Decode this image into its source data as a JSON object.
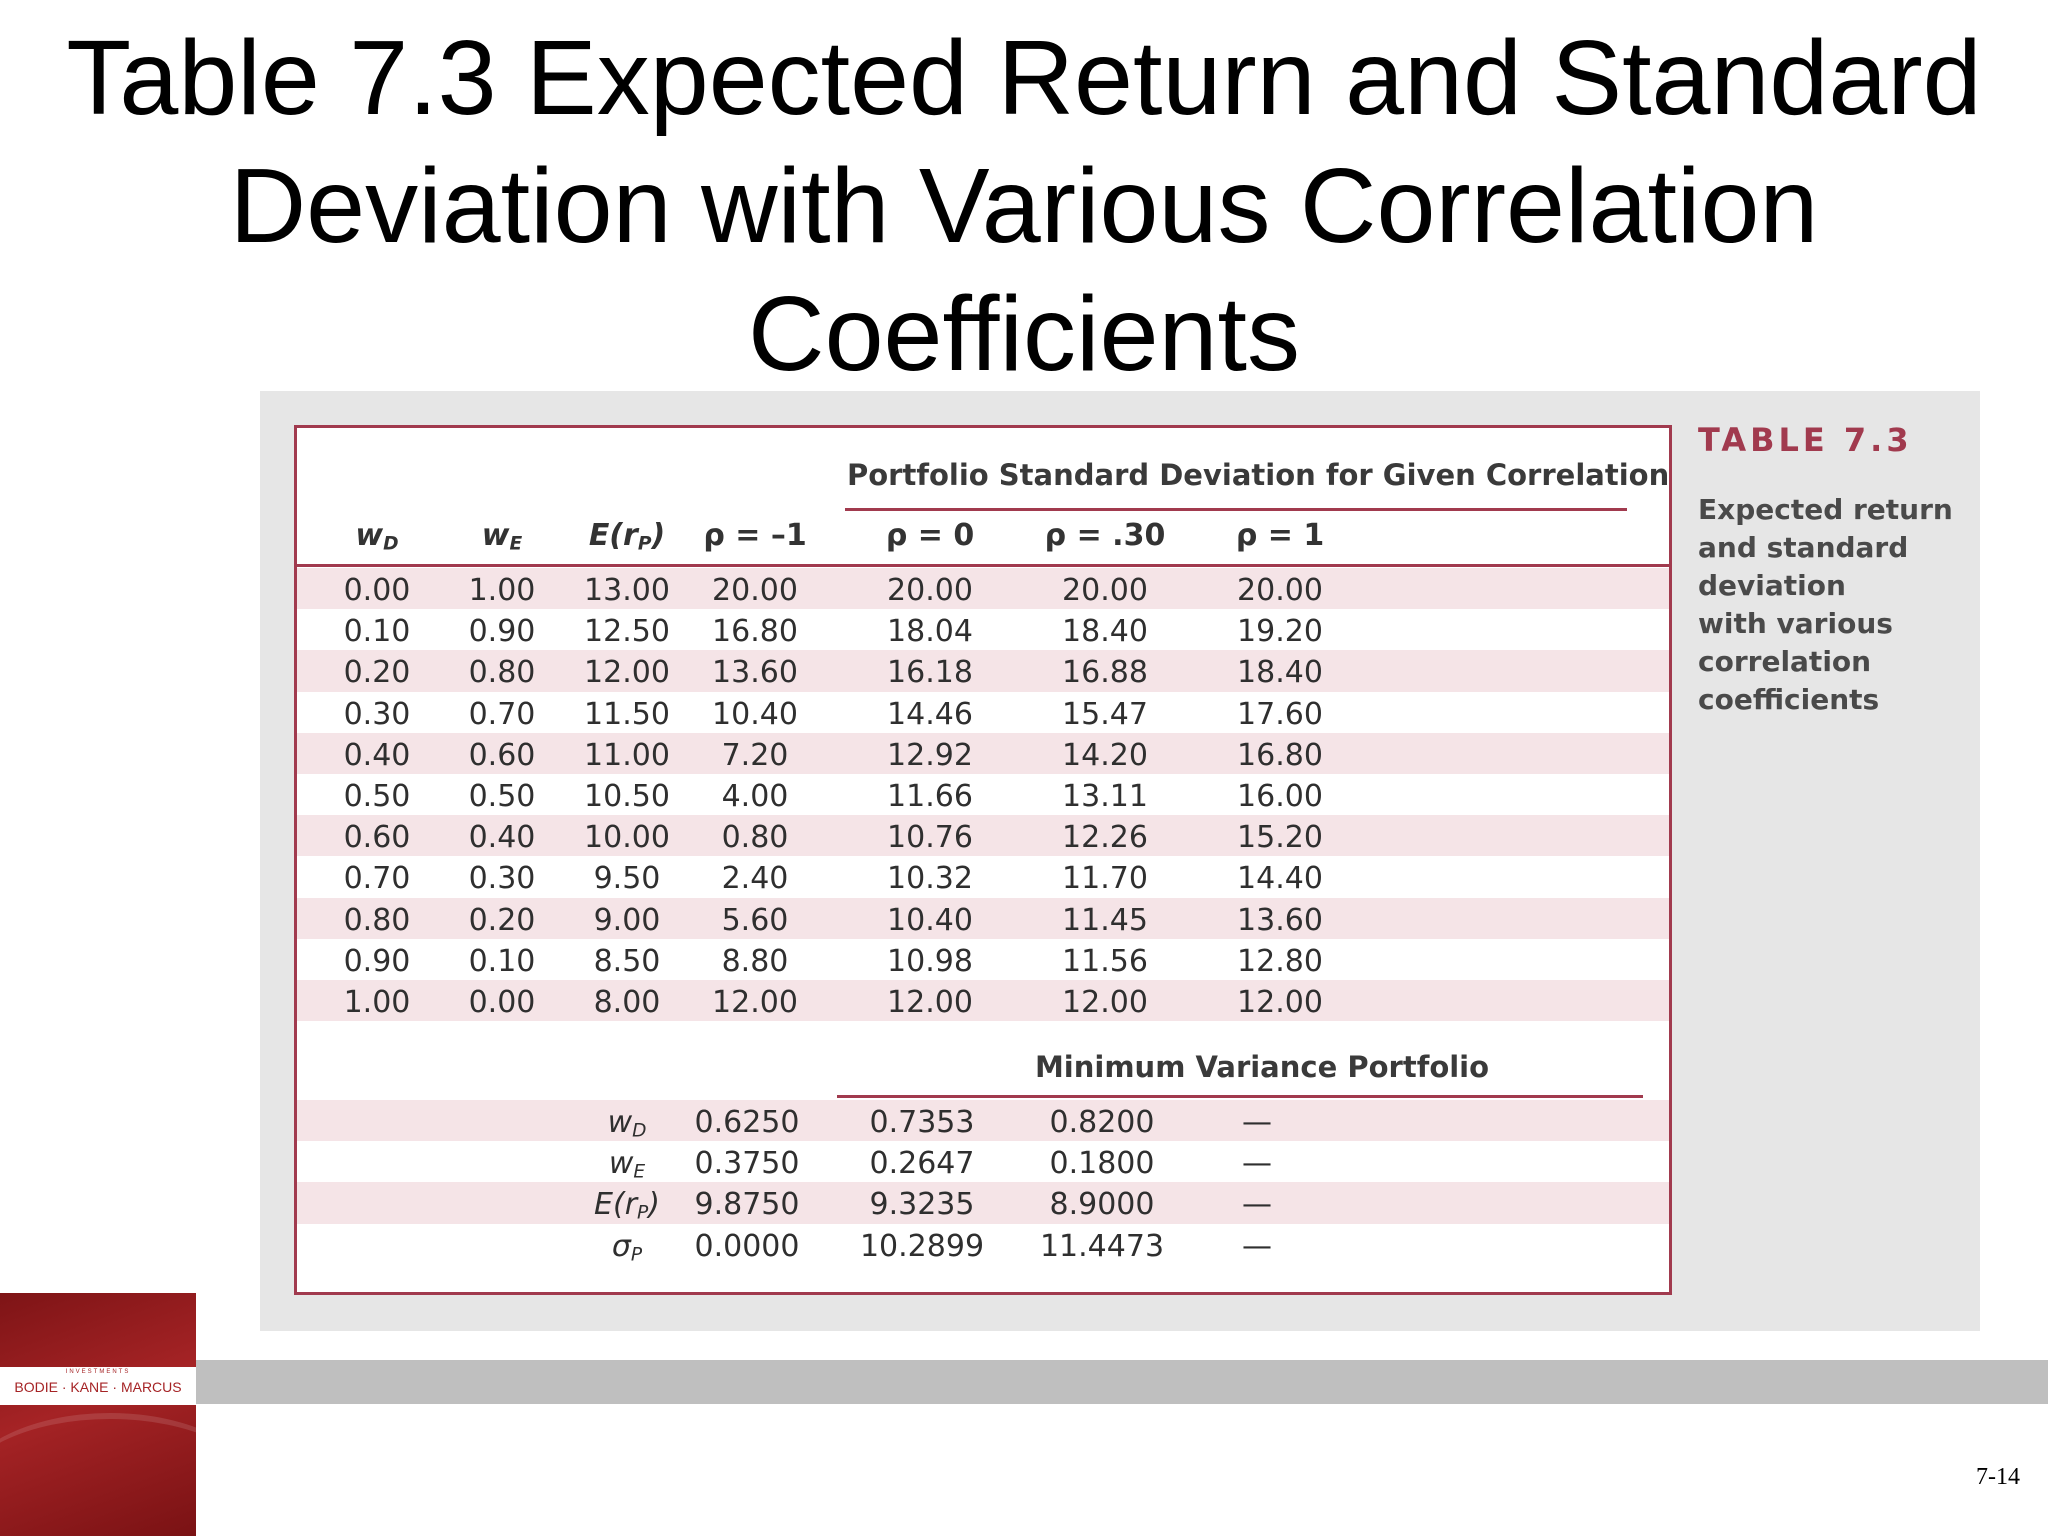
{
  "slide": {
    "title_lines": [
      "Table 7.3 Expected Return and Standard",
      "Deviation with Various Correlation",
      "Coefficients"
    ],
    "page_number": "7-14"
  },
  "table": {
    "group_header": "Portfolio Standard Deviation for Given Correlation",
    "columns": [
      "w_D",
      "w_E",
      "E(r_P)",
      "ρ = –1",
      "ρ = 0",
      "ρ = .30",
      "ρ = 1"
    ],
    "rows": [
      [
        "0.00",
        "1.00",
        "13.00",
        "20.00",
        "20.00",
        "20.00",
        "20.00"
      ],
      [
        "0.10",
        "0.90",
        "12.50",
        "16.80",
        "18.04",
        "18.40",
        "19.20"
      ],
      [
        "0.20",
        "0.80",
        "12.00",
        "13.60",
        "16.18",
        "16.88",
        "18.40"
      ],
      [
        "0.30",
        "0.70",
        "11.50",
        "10.40",
        "14.46",
        "15.47",
        "17.60"
      ],
      [
        "0.40",
        "0.60",
        "11.00",
        "7.20",
        "12.92",
        "14.20",
        "16.80"
      ],
      [
        "0.50",
        "0.50",
        "10.50",
        "4.00",
        "11.66",
        "13.11",
        "16.00"
      ],
      [
        "0.60",
        "0.40",
        "10.00",
        "0.80",
        "10.76",
        "12.26",
        "15.20"
      ],
      [
        "0.70",
        "0.30",
        "9.50",
        "2.40",
        "10.32",
        "11.70",
        "14.40"
      ],
      [
        "0.80",
        "0.20",
        "9.00",
        "5.60",
        "10.40",
        "11.45",
        "13.60"
      ],
      [
        "0.90",
        "0.10",
        "8.50",
        "8.80",
        "10.98",
        "11.56",
        "12.80"
      ],
      [
        "1.00",
        "0.00",
        "8.00",
        "12.00",
        "12.00",
        "12.00",
        "12.00"
      ]
    ],
    "min_variance_header": "Minimum Variance Portfolio",
    "min_variance_rows": [
      {
        "label": "w",
        "sub": "D",
        "values": [
          "0.6250",
          "0.7353",
          "0.8200",
          "—"
        ]
      },
      {
        "label": "w",
        "sub": "E",
        "values": [
          "0.3750",
          "0.2647",
          "0.1800",
          "—"
        ]
      },
      {
        "label": "E(r",
        "sub": "P",
        "suffix": ")",
        "values": [
          "9.8750",
          "9.3235",
          "8.9000",
          "—"
        ]
      },
      {
        "label": "σ",
        "sub": "P",
        "values": [
          "0.0000",
          "10.2899",
          "11.4473",
          "—"
        ]
      }
    ]
  },
  "caption": {
    "table_number": "TABLE 7.3",
    "lines": [
      "Expected return",
      "and standard",
      "deviation",
      "with various",
      "correlation",
      "coefficients"
    ]
  },
  "book": {
    "series": "INVESTMENTS",
    "authors": "BODIE · KANE · MARCUS"
  },
  "colors": {
    "accent": "#a13a4e",
    "row_shade": "#f5e4e7",
    "panel": "#e6e6e6",
    "footer_bar": "#bfbfbf",
    "book_red": "#a52325"
  }
}
